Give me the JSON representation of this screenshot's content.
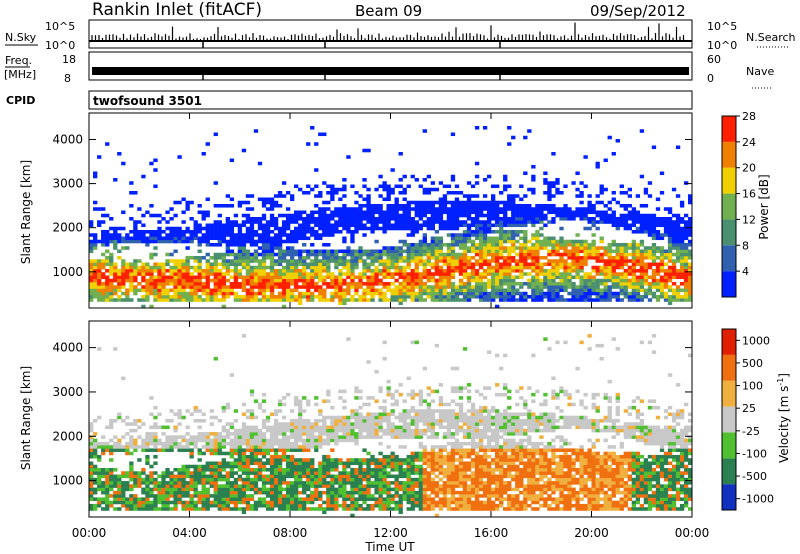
{
  "header": {
    "station": "Rankin Inlet (fitACF)",
    "beam": "Beam 09",
    "date": "09/Sep/2012"
  },
  "noise_panel": {
    "left_label": "N.Sky",
    "right_label": "N.Search",
    "ticks_left": [
      "10^5",
      "10^0"
    ],
    "ticks_right": [
      "10^5",
      "10^0"
    ]
  },
  "freq_panel": {
    "left_label_1": "Freq.",
    "left_label_2": "[MHz]",
    "right_label": "Nave",
    "ticks_left": [
      "18",
      "8"
    ],
    "ticks_right": [
      "60",
      "0"
    ]
  },
  "cpid": {
    "label": "CPID",
    "value": "twofsound 3501"
  },
  "chart_data": [
    {
      "type": "heatmap",
      "name": "power",
      "ylabel": "Slant Range [km]",
      "yticks": [
        "1000",
        "2000",
        "3000",
        "4000"
      ],
      "ylim": [
        180,
        4600
      ],
      "colorbar_label": "Power [dB]",
      "colorbar_ticks": [
        "4",
        "8",
        "12",
        "16",
        "20",
        "24",
        "28"
      ],
      "colorbar_colors": [
        "#0020ff",
        "#3060b0",
        "#4a9070",
        "#70b050",
        "#f0d000",
        "#f08000",
        "#ff2000"
      ]
    },
    {
      "type": "heatmap",
      "name": "velocity",
      "ylabel": "Slant Range [km]",
      "yticks": [
        "1000",
        "2000",
        "3000",
        "4000"
      ],
      "ylim": [
        180,
        4600
      ],
      "xlabel": "Time UT",
      "xticks": [
        "00:00",
        "04:00",
        "08:00",
        "12:00",
        "16:00",
        "20:00",
        "00:00"
      ],
      "colorbar_label": "Velocity [m s",
      "colorbar_label_sup": "-1",
      "colorbar_label_end": "]",
      "colorbar_ticks": [
        "1000",
        "500",
        "100",
        "25",
        "-25",
        "-100",
        "-500",
        "-1000"
      ],
      "colorbar_colors": [
        "#1030c0",
        "#2a8050",
        "#50c030",
        "#c8c8c8",
        "#f0b040",
        "#f07010",
        "#e02000"
      ]
    }
  ]
}
